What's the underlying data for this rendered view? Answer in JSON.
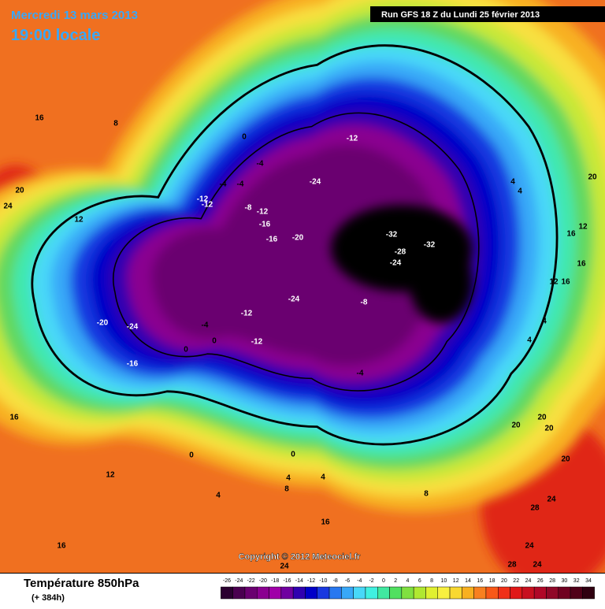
{
  "header": {
    "date": "Mercredi 13 mars 2013",
    "time": "19:00 locale",
    "run": "Run GFS 18 Z du Lundi 25 février 2013"
  },
  "copyright": "Copyright © 2012 Meteociel.fr",
  "legend": {
    "title": "Température 850hPa",
    "lead": "(+ 384h)",
    "ticks": [
      -26,
      -24,
      -22,
      -20,
      -18,
      -16,
      -14,
      -12,
      -10,
      -8,
      -6,
      -4,
      -2,
      0,
      2,
      4,
      6,
      8,
      10,
      12,
      14,
      16,
      18,
      20,
      22,
      24,
      26,
      28,
      30,
      32,
      34
    ],
    "colors": [
      "#2a0030",
      "#4a0050",
      "#6a0070",
      "#8a0090",
      "#a000a8",
      "#7000a0",
      "#3000b0",
      "#0000c8",
      "#1838e0",
      "#2878f0",
      "#38a8f8",
      "#48d8f8",
      "#40f0e0",
      "#40e8a0",
      "#50e060",
      "#80e040",
      "#b0e830",
      "#e0f030",
      "#f8f040",
      "#f8d830",
      "#f8b020",
      "#f88020",
      "#f85818",
      "#f03018",
      "#e01818",
      "#c81020",
      "#b00828",
      "#900828",
      "#700020",
      "#500018",
      "#300010"
    ]
  },
  "map_labels": [
    "16",
    "8",
    "20",
    "24",
    "12",
    "0",
    "-4",
    "-4",
    "-4",
    "-12",
    "-12",
    "-8",
    "-12",
    "-16",
    "-16",
    "-20",
    "-24",
    "-12",
    "-32",
    "-32",
    "-28",
    "-24",
    "-24",
    "-20",
    "-24",
    "-16",
    "-4",
    "0",
    "0",
    "-12",
    "-12",
    "-8",
    "-4",
    "4",
    "4",
    "20",
    "16",
    "12",
    "16",
    "12",
    "16",
    "4",
    "4",
    "16",
    "20",
    "20",
    "20",
    "20",
    "0",
    "12",
    "0",
    "4",
    "4",
    "8",
    "4",
    "8",
    "16",
    "24",
    "28",
    "16",
    "24",
    "24",
    "28",
    "24"
  ]
}
